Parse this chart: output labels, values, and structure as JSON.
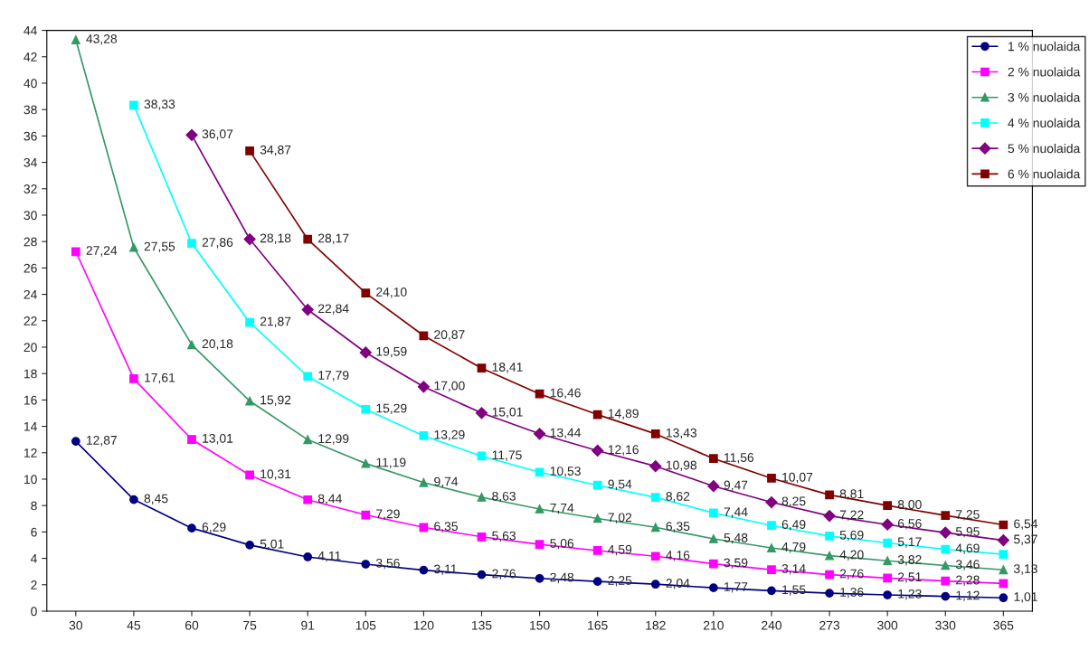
{
  "chart_data": {
    "type": "line",
    "categories": [
      "30",
      "45",
      "60",
      "75",
      "91",
      "105",
      "120",
      "135",
      "150",
      "165",
      "182",
      "210",
      "240",
      "273",
      "300",
      "330",
      "365"
    ],
    "ylim": [
      0,
      44
    ],
    "yticks": [
      0,
      2,
      4,
      6,
      8,
      10,
      12,
      14,
      16,
      18,
      20,
      22,
      24,
      26,
      28,
      30,
      32,
      34,
      36,
      38,
      40,
      42,
      44
    ],
    "grid": false,
    "legend": "top right",
    "series": [
      {
        "name": "1 % nuolaida",
        "color": "#000080",
        "marker": "circle",
        "values": [
          12.87,
          8.45,
          6.29,
          5.01,
          4.11,
          3.56,
          3.11,
          2.76,
          2.48,
          2.25,
          2.04,
          1.77,
          1.55,
          1.36,
          1.23,
          1.12,
          1.01
        ],
        "value_labels": [
          "12,87",
          "8,45",
          "6,29",
          "5,01",
          "4,11",
          "3,56",
          "3,11",
          "2,76",
          "2,48",
          "2,25",
          "2,04",
          "1,77",
          "1,55",
          "1,36",
          "1,23",
          "1,12",
          "1,01"
        ]
      },
      {
        "name": "2 % nuolaida",
        "color": "#ff00ff",
        "marker": "square",
        "values": [
          27.24,
          17.61,
          13.01,
          10.31,
          8.44,
          7.29,
          6.35,
          5.63,
          5.06,
          4.59,
          4.16,
          3.59,
          3.14,
          2.76,
          2.51,
          2.28,
          2.1
        ],
        "value_labels": [
          "27,24",
          "17,61",
          "13,01",
          "10,31",
          "8,44",
          "7,29",
          "6,35",
          "5,63",
          "5,06",
          "4,59",
          "4,16",
          "3,59",
          "3,14",
          "2,76",
          "2,51",
          "2,28",
          null
        ]
      },
      {
        "name": "3 % nuolaida",
        "color": "#339966",
        "marker": "triangle",
        "values": [
          43.28,
          27.55,
          20.18,
          15.92,
          12.99,
          11.19,
          9.74,
          8.63,
          7.74,
          7.02,
          6.35,
          5.48,
          4.79,
          4.2,
          3.82,
          3.46,
          3.13
        ],
        "value_labels": [
          "43,28",
          "27,55",
          "20,18",
          "15,92",
          "12,99",
          "11,19",
          "9,74",
          "8,63",
          "7,74",
          "7,02",
          "6,35",
          "5,48",
          "4,79",
          "4,20",
          "3,82",
          "3,46",
          "3,13"
        ]
      },
      {
        "name": "4 % nuolaida",
        "color": "#00ffff",
        "marker": "square",
        "values": [
          null,
          38.33,
          27.86,
          21.87,
          17.79,
          15.29,
          13.29,
          11.75,
          10.53,
          9.54,
          8.62,
          7.44,
          6.49,
          5.69,
          5.17,
          4.69,
          4.3
        ],
        "value_labels": [
          null,
          "38,33",
          "27,86",
          "21,87",
          "17,79",
          "15,29",
          "13,29",
          "11,75",
          "10,53",
          "9,54",
          "8,62",
          "7,44",
          "6,49",
          "5,69",
          "5,17",
          "4,69",
          null
        ]
      },
      {
        "name": "5 % nuolaida",
        "color": "#800080",
        "marker": "diamond",
        "values": [
          null,
          null,
          36.07,
          28.18,
          22.84,
          19.59,
          17.0,
          15.01,
          13.44,
          12.16,
          10.98,
          9.47,
          8.25,
          7.22,
          6.56,
          5.95,
          5.37
        ],
        "value_labels": [
          null,
          null,
          "36,07",
          "28,18",
          "22,84",
          "19,59",
          "17,00",
          "15,01",
          "13,44",
          "12,16",
          "10,98",
          "9,47",
          "8,25",
          "7,22",
          "6,56",
          "5,95",
          "5,37"
        ]
      },
      {
        "name": "6 % nuolaida",
        "color": "#800000",
        "marker": "square",
        "values": [
          null,
          null,
          null,
          34.87,
          28.17,
          24.1,
          20.87,
          18.41,
          16.46,
          14.89,
          13.43,
          11.56,
          10.07,
          8.81,
          8.0,
          7.25,
          6.54
        ],
        "value_labels": [
          null,
          null,
          null,
          "34,87",
          "28,17",
          "24,10",
          "20,87",
          "18,41",
          "16,46",
          "14,89",
          "13,43",
          "11,56",
          "10,07",
          "8,81",
          "8,00",
          "7,25",
          "6,54"
        ]
      }
    ]
  }
}
